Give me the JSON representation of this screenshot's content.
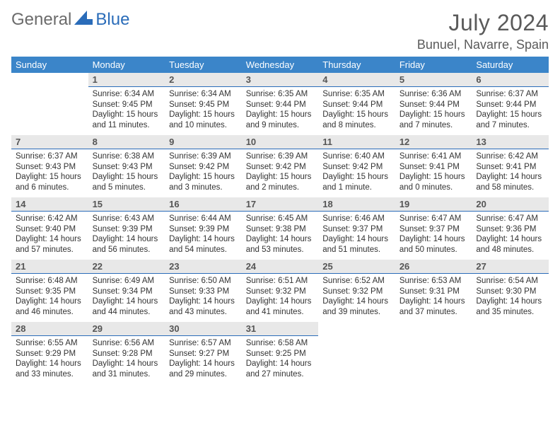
{
  "logo": {
    "part1": "General",
    "part2": "Blue"
  },
  "title": {
    "month": "July 2024",
    "location": "Bunuel, Navarre, Spain"
  },
  "calendar": {
    "type": "table",
    "header_bg": "#3b85c9",
    "header_fg": "#ffffff",
    "daynum_bg": "#e8e8e8",
    "daynum_border": "#2a6cb9",
    "text_color": "#333333",
    "background_color": "#ffffff",
    "day_fontsize": 11.5,
    "columns": [
      "Sunday",
      "Monday",
      "Tuesday",
      "Wednesday",
      "Thursday",
      "Friday",
      "Saturday"
    ],
    "weeks": [
      [
        null,
        {
          "n": "1",
          "sr": "6:34 AM",
          "ss": "9:45 PM",
          "dl": "15 hours and 11 minutes."
        },
        {
          "n": "2",
          "sr": "6:34 AM",
          "ss": "9:45 PM",
          "dl": "15 hours and 10 minutes."
        },
        {
          "n": "3",
          "sr": "6:35 AM",
          "ss": "9:44 PM",
          "dl": "15 hours and 9 minutes."
        },
        {
          "n": "4",
          "sr": "6:35 AM",
          "ss": "9:44 PM",
          "dl": "15 hours and 8 minutes."
        },
        {
          "n": "5",
          "sr": "6:36 AM",
          "ss": "9:44 PM",
          "dl": "15 hours and 7 minutes."
        },
        {
          "n": "6",
          "sr": "6:37 AM",
          "ss": "9:44 PM",
          "dl": "15 hours and 7 minutes."
        }
      ],
      [
        {
          "n": "7",
          "sr": "6:37 AM",
          "ss": "9:43 PM",
          "dl": "15 hours and 6 minutes."
        },
        {
          "n": "8",
          "sr": "6:38 AM",
          "ss": "9:43 PM",
          "dl": "15 hours and 5 minutes."
        },
        {
          "n": "9",
          "sr": "6:39 AM",
          "ss": "9:42 PM",
          "dl": "15 hours and 3 minutes."
        },
        {
          "n": "10",
          "sr": "6:39 AM",
          "ss": "9:42 PM",
          "dl": "15 hours and 2 minutes."
        },
        {
          "n": "11",
          "sr": "6:40 AM",
          "ss": "9:42 PM",
          "dl": "15 hours and 1 minute."
        },
        {
          "n": "12",
          "sr": "6:41 AM",
          "ss": "9:41 PM",
          "dl": "15 hours and 0 minutes."
        },
        {
          "n": "13",
          "sr": "6:42 AM",
          "ss": "9:41 PM",
          "dl": "14 hours and 58 minutes."
        }
      ],
      [
        {
          "n": "14",
          "sr": "6:42 AM",
          "ss": "9:40 PM",
          "dl": "14 hours and 57 minutes."
        },
        {
          "n": "15",
          "sr": "6:43 AM",
          "ss": "9:39 PM",
          "dl": "14 hours and 56 minutes."
        },
        {
          "n": "16",
          "sr": "6:44 AM",
          "ss": "9:39 PM",
          "dl": "14 hours and 54 minutes."
        },
        {
          "n": "17",
          "sr": "6:45 AM",
          "ss": "9:38 PM",
          "dl": "14 hours and 53 minutes."
        },
        {
          "n": "18",
          "sr": "6:46 AM",
          "ss": "9:37 PM",
          "dl": "14 hours and 51 minutes."
        },
        {
          "n": "19",
          "sr": "6:47 AM",
          "ss": "9:37 PM",
          "dl": "14 hours and 50 minutes."
        },
        {
          "n": "20",
          "sr": "6:47 AM",
          "ss": "9:36 PM",
          "dl": "14 hours and 48 minutes."
        }
      ],
      [
        {
          "n": "21",
          "sr": "6:48 AM",
          "ss": "9:35 PM",
          "dl": "14 hours and 46 minutes."
        },
        {
          "n": "22",
          "sr": "6:49 AM",
          "ss": "9:34 PM",
          "dl": "14 hours and 44 minutes."
        },
        {
          "n": "23",
          "sr": "6:50 AM",
          "ss": "9:33 PM",
          "dl": "14 hours and 43 minutes."
        },
        {
          "n": "24",
          "sr": "6:51 AM",
          "ss": "9:32 PM",
          "dl": "14 hours and 41 minutes."
        },
        {
          "n": "25",
          "sr": "6:52 AM",
          "ss": "9:32 PM",
          "dl": "14 hours and 39 minutes."
        },
        {
          "n": "26",
          "sr": "6:53 AM",
          "ss": "9:31 PM",
          "dl": "14 hours and 37 minutes."
        },
        {
          "n": "27",
          "sr": "6:54 AM",
          "ss": "9:30 PM",
          "dl": "14 hours and 35 minutes."
        }
      ],
      [
        {
          "n": "28",
          "sr": "6:55 AM",
          "ss": "9:29 PM",
          "dl": "14 hours and 33 minutes."
        },
        {
          "n": "29",
          "sr": "6:56 AM",
          "ss": "9:28 PM",
          "dl": "14 hours and 31 minutes."
        },
        {
          "n": "30",
          "sr": "6:57 AM",
          "ss": "9:27 PM",
          "dl": "14 hours and 29 minutes."
        },
        {
          "n": "31",
          "sr": "6:58 AM",
          "ss": "9:25 PM",
          "dl": "14 hours and 27 minutes."
        },
        null,
        null,
        null
      ]
    ]
  },
  "labels": {
    "sunrise": "Sunrise:",
    "sunset": "Sunset:",
    "daylight": "Daylight:"
  }
}
